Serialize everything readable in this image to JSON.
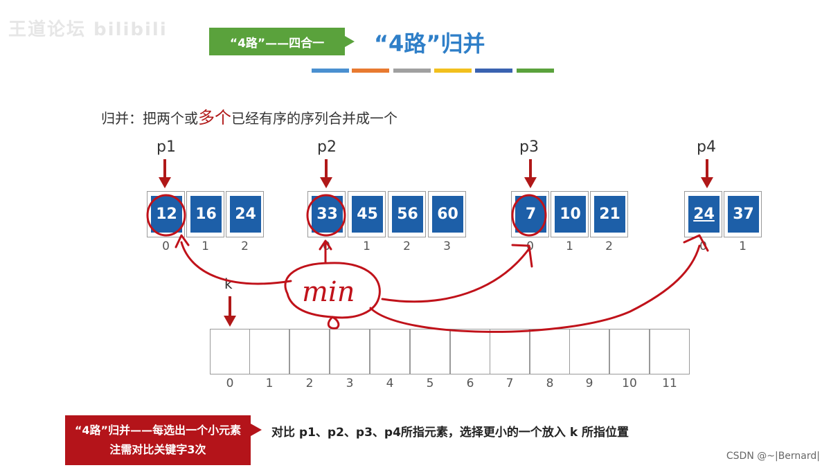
{
  "header": {
    "logo_text": "王道论坛 bilibili",
    "tag_label": "“4路”——四合一",
    "title": "“4路”归并",
    "color_bars": [
      "#4a90d0",
      "#e87a30",
      "#a0a0a0",
      "#f2c01e",
      "#3a62b0",
      "#5aa23c"
    ]
  },
  "subtitle": {
    "prefix": "归并：把两个或",
    "highlight": "多个",
    "suffix": "已经有序的序列合并成一个"
  },
  "arrays": [
    {
      "pointer": "p1",
      "values": [
        "12",
        "16",
        "24"
      ],
      "indices": [
        "0",
        "1",
        "2"
      ]
    },
    {
      "pointer": "p2",
      "values": [
        "33",
        "45",
        "56",
        "60"
      ],
      "indices": [
        "0",
        "1",
        "2",
        "3"
      ]
    },
    {
      "pointer": "p3",
      "values": [
        "7",
        "10",
        "21"
      ],
      "indices": [
        "0",
        "1",
        "2"
      ]
    },
    {
      "pointer": "p4",
      "values": [
        "24",
        "37"
      ],
      "indices": [
        "0",
        "1"
      ]
    }
  ],
  "output": {
    "pointer": "k",
    "indices": [
      "0",
      "1",
      "2",
      "3",
      "4",
      "5",
      "6",
      "7",
      "8",
      "9",
      "10",
      "11"
    ]
  },
  "handwriting": {
    "text": "min",
    "color": "#c0121a"
  },
  "note": {
    "box_text": "“4路”归并——每选出一个小元素注需对比关键字3次",
    "description": "对比 p1、p2、p3、p4所指元素，选择更小的一个放入 k 所指位置"
  },
  "credit": "CSDN @~|Bernard|",
  "colors": {
    "cell_blue": "#1d5fa8",
    "accent_red": "#b01818",
    "green": "#5aa23c"
  }
}
